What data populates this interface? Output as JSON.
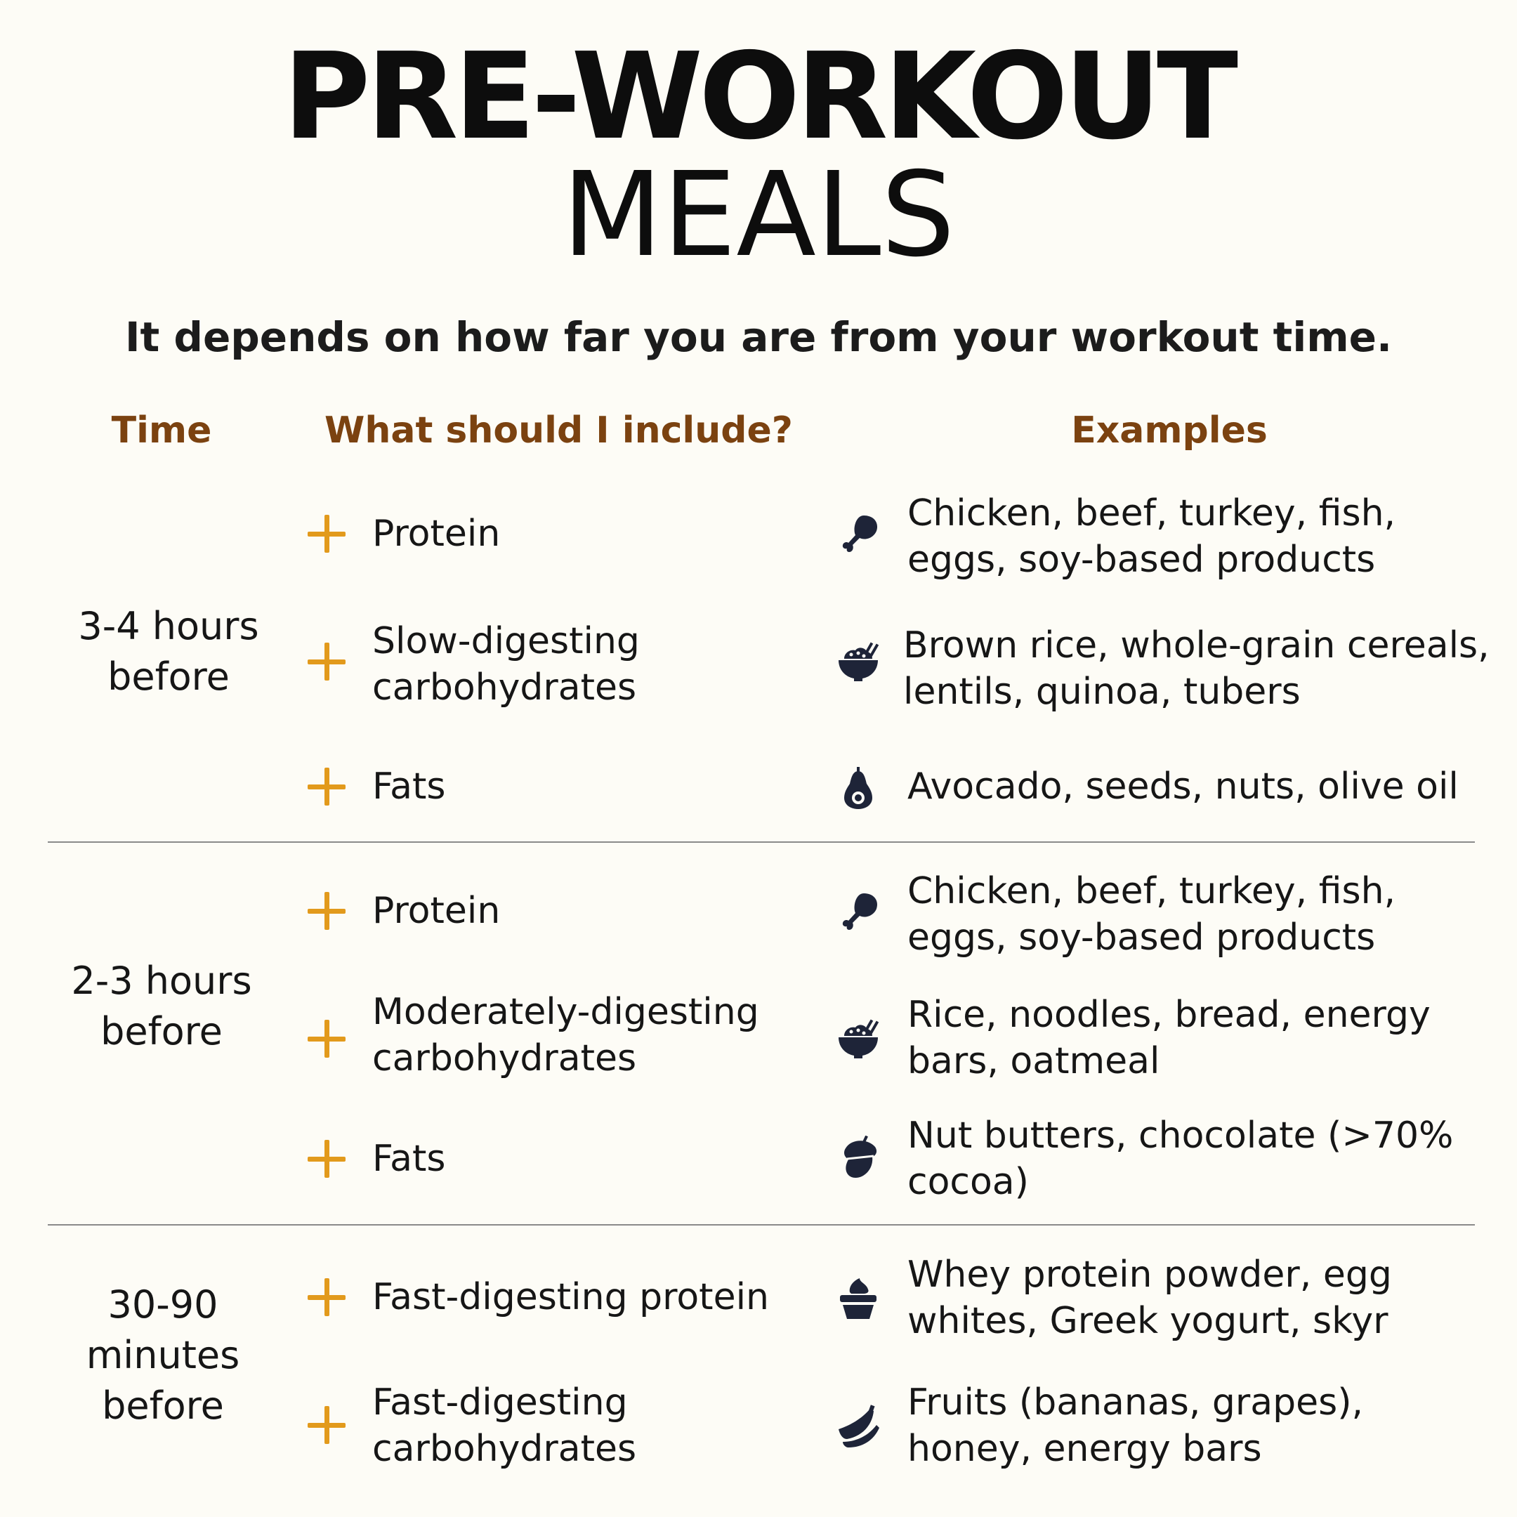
{
  "title": {
    "line1": "PRE-WORKOUT",
    "line2": "MEALS"
  },
  "subtitle": "It depends on how far you are from your workout time.",
  "colors": {
    "accent_plus": "#e29a1c",
    "header": "#7b4210",
    "icon": "#1e2438",
    "background": "#fdfcf6"
  },
  "columns": {
    "time": "Time",
    "include": "What should I include?",
    "examples": "Examples"
  },
  "sections": [
    {
      "time": "3-4 hours\nbefore",
      "rows": [
        {
          "nutrient": "Protein",
          "icon": "chicken-leg-icon",
          "examples": "Chicken, beef, turkey, fish,\neggs, soy-based products"
        },
        {
          "nutrient": "Slow-digesting\ncarbohydrates",
          "icon": "rice-bowl-icon",
          "examples": "Brown rice, whole-grain cereals,\nlentils, quinoa, tubers"
        },
        {
          "nutrient": "Fats",
          "icon": "avocado-icon",
          "examples": "Avocado, seeds, nuts, olive oil"
        }
      ]
    },
    {
      "time": "2-3 hours\nbefore",
      "rows": [
        {
          "nutrient": "Protein",
          "icon": "chicken-leg-icon",
          "examples": "Chicken, beef, turkey, fish,\neggs, soy-based products"
        },
        {
          "nutrient": "Moderately-digesting\ncarbohydrates",
          "icon": "rice-bowl-icon",
          "examples": "Rice, noodles, bread, energy\nbars, oatmeal"
        },
        {
          "nutrient": "Fats",
          "icon": "acorn-icon",
          "examples": "Nut butters, chocolate (>70%\ncocoa)"
        }
      ]
    },
    {
      "time": "30-90\nminutes\nbefore",
      "rows": [
        {
          "nutrient": "Fast-digesting protein",
          "icon": "yogurt-cup-icon",
          "examples": "Whey protein powder, egg\nwhites, Greek yogurt, skyr"
        },
        {
          "nutrient": "Fast-digesting\ncarbohydrates",
          "icon": "banana-icon",
          "examples": "Fruits (bananas, grapes),\nhoney, energy bars"
        }
      ]
    }
  ]
}
